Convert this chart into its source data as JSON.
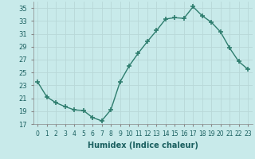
{
  "x": [
    0,
    1,
    2,
    3,
    4,
    5,
    6,
    7,
    8,
    9,
    10,
    11,
    12,
    13,
    14,
    15,
    16,
    17,
    18,
    19,
    20,
    21,
    22,
    23
  ],
  "y": [
    23.5,
    21.2,
    20.3,
    19.7,
    19.2,
    19.1,
    18.0,
    17.5,
    19.2,
    23.5,
    26.0,
    28.0,
    29.8,
    31.5,
    33.3,
    33.5,
    33.4,
    35.2,
    33.8,
    32.8,
    31.3,
    28.8,
    26.7,
    25.5
  ],
  "line_color": "#2e7d6e",
  "marker": "P",
  "marker_size": 3,
  "xlabel": "Humidex (Indice chaleur)",
  "xlim": [
    -0.5,
    23.5
  ],
  "ylim": [
    17,
    36
  ],
  "yticks": [
    17,
    19,
    21,
    23,
    25,
    27,
    29,
    31,
    33,
    35
  ],
  "xticks": [
    0,
    1,
    2,
    3,
    4,
    5,
    6,
    7,
    8,
    9,
    10,
    11,
    12,
    13,
    14,
    15,
    16,
    17,
    18,
    19,
    20,
    21,
    22,
    23
  ],
  "xtick_labels": [
    "0",
    "1",
    "2",
    "3",
    "4",
    "5",
    "6",
    "7",
    "8",
    "9",
    "10",
    "11",
    "12",
    "13",
    "14",
    "15",
    "16",
    "17",
    "18",
    "19",
    "20",
    "21",
    "22",
    "23"
  ],
  "background_color": "#c8eaea",
  "grid_color": "#b8d8d8"
}
